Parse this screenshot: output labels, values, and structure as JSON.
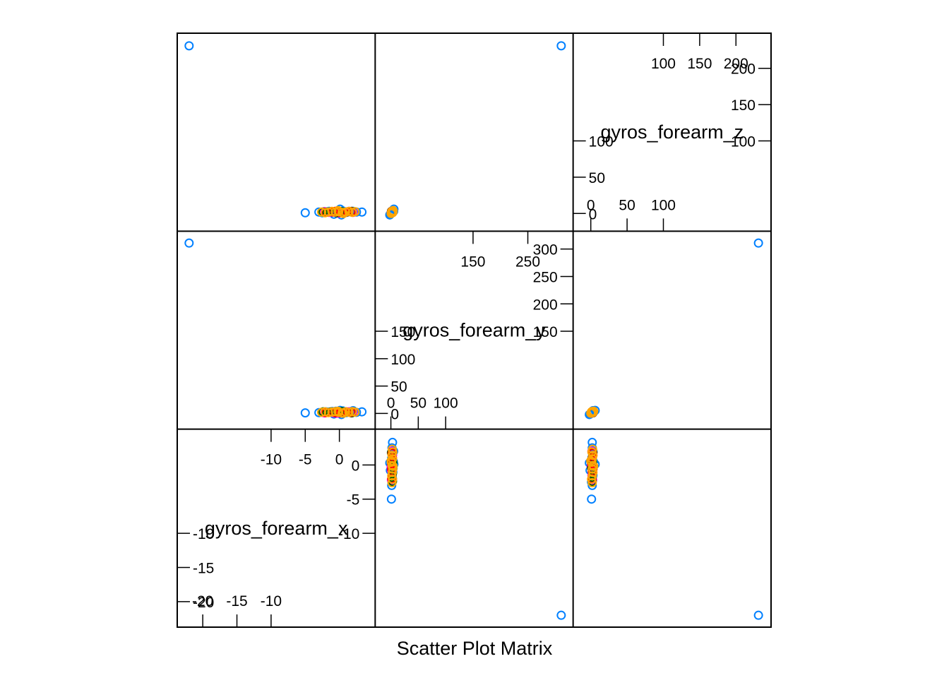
{
  "chart_data": {
    "type": "scatter",
    "subtype": "scatter-plot-matrix",
    "xlabel": "Scatter Plot Matrix",
    "variables": [
      "gyros_forearm_x",
      "gyros_forearm_y",
      "gyros_forearm_z"
    ],
    "variable_ranges": {
      "gyros_forearm_x": [
        -22.0,
        3.5
      ],
      "gyros_forearm_y": [
        -7.0,
        311.0
      ],
      "gyros_forearm_z": [
        -8.0,
        232.0
      ]
    },
    "diagonal": {
      "gyros_forearm_x": {
        "label": "gyros_forearm_x",
        "upper_ticks": [
          "-10",
          "-5",
          "0"
        ],
        "upper_tick_values": [
          -10,
          -5,
          0
        ],
        "right_ticks": [
          "0",
          "-5",
          "-10"
        ],
        "right_tick_values": [
          0,
          -5,
          -10
        ],
        "lower_ticks": [
          "-20",
          "-15",
          "-10"
        ],
        "lower_tick_values": [
          -20,
          -15,
          -10
        ],
        "left_ticks": [
          "-10",
          "-15",
          "-20"
        ],
        "left_tick_values": [
          -10,
          -15,
          -20
        ]
      },
      "gyros_forearm_y": {
        "label": "gyros_forearm_y",
        "upper_ticks": [
          "150",
          "250"
        ],
        "upper_tick_values": [
          150,
          250
        ],
        "right_ticks": [
          "300",
          "250",
          "200",
          "150"
        ],
        "right_tick_values": [
          300,
          250,
          200,
          150
        ],
        "lower_ticks": [
          "0",
          "50",
          "100"
        ],
        "lower_tick_values": [
          0,
          50,
          100
        ],
        "left_ticks": [
          "150",
          "100",
          "50",
          "0"
        ],
        "left_tick_values": [
          150,
          100,
          50,
          0
        ]
      },
      "gyros_forearm_z": {
        "label": "gyros_forearm_z",
        "upper_ticks": [
          "100",
          "150",
          "200"
        ],
        "upper_tick_values": [
          100,
          150,
          200
        ],
        "right_ticks": [
          "200",
          "150",
          "100"
        ],
        "right_tick_values": [
          200,
          150,
          100
        ],
        "lower_ticks": [
          "0",
          "50",
          "100"
        ],
        "lower_tick_values": [
          0,
          50,
          100
        ],
        "left_ticks": [
          "100",
          "50",
          "0"
        ],
        "left_tick_values": [
          100,
          50,
          0
        ]
      }
    },
    "group_colors": [
      "#0080ff",
      "#ff00ff",
      "#006400",
      "#ff0000",
      "#ffa500"
    ],
    "outlier": {
      "gyros_forearm_x": -22.0,
      "gyros_forearm_y": 311.0,
      "gyros_forearm_z": 231.0
    },
    "points": [
      {
        "x": -22.0,
        "y": 311.0,
        "z": 231.0,
        "group": 0
      },
      {
        "x": -5.0,
        "y": 1.0,
        "z": 1.0,
        "group": 0
      },
      {
        "x": -3.0,
        "y": 1.5,
        "z": 2.0,
        "group": 0
      },
      {
        "x": -2.5,
        "y": 2.0,
        "z": 1.0,
        "group": 0
      },
      {
        "x": -2.0,
        "y": 3.0,
        "z": 2.0,
        "group": 0
      },
      {
        "x": -1.5,
        "y": 2.5,
        "z": 3.0,
        "group": 0
      },
      {
        "x": -1.0,
        "y": 3.5,
        "z": 2.5,
        "group": 0
      },
      {
        "x": -0.5,
        "y": 4.0,
        "z": 3.0,
        "group": 0
      },
      {
        "x": 0.0,
        "y": 2.0,
        "z": 2.0,
        "group": 0
      },
      {
        "x": 0.5,
        "y": 4.5,
        "z": 3.5,
        "group": 0
      },
      {
        "x": 1.0,
        "y": 1.5,
        "z": 1.5,
        "group": 0
      },
      {
        "x": 1.5,
        "y": 3.0,
        "z": 2.5,
        "group": 0
      },
      {
        "x": 2.0,
        "y": 5.0,
        "z": 3.0,
        "group": 0
      },
      {
        "x": 2.5,
        "y": 2.0,
        "z": 2.0,
        "group": 0
      },
      {
        "x": 3.3,
        "y": 3.0,
        "z": 2.0,
        "group": 0
      },
      {
        "x": 0.3,
        "y": -2.0,
        "z": -2.0,
        "group": 0
      },
      {
        "x": 0.1,
        "y": 5.5,
        "z": 6.0,
        "group": 0
      },
      {
        "x": -0.8,
        "y": -1.0,
        "z": -1.0,
        "group": 0
      },
      {
        "x": -2.2,
        "y": 1.0,
        "z": 2.5,
        "group": 1
      },
      {
        "x": -1.5,
        "y": 2.0,
        "z": 1.5,
        "group": 1
      },
      {
        "x": -0.8,
        "y": 1.0,
        "z": 2.0,
        "group": 1
      },
      {
        "x": 0.0,
        "y": 2.5,
        "z": 2.0,
        "group": 1
      },
      {
        "x": 0.7,
        "y": 1.5,
        "z": 1.0,
        "group": 1
      },
      {
        "x": 1.4,
        "y": 3.0,
        "z": 3.0,
        "group": 1
      },
      {
        "x": 2.0,
        "y": 2.0,
        "z": 1.5,
        "group": 1
      },
      {
        "x": -0.3,
        "y": 0.5,
        "z": 0.5,
        "group": 1
      },
      {
        "x": -1.8,
        "y": 2.0,
        "z": 2.0,
        "group": 2
      },
      {
        "x": -1.2,
        "y": 3.0,
        "z": 2.5,
        "group": 2
      },
      {
        "x": -0.4,
        "y": 2.0,
        "z": 1.0,
        "group": 2
      },
      {
        "x": 0.4,
        "y": 3.5,
        "z": 2.5,
        "group": 2
      },
      {
        "x": 1.1,
        "y": 2.5,
        "z": 2.0,
        "group": 2
      },
      {
        "x": 1.8,
        "y": 1.0,
        "z": 3.0,
        "group": 2
      },
      {
        "x": -2.4,
        "y": 3.0,
        "z": 2.0,
        "group": 2
      },
      {
        "x": -2.0,
        "y": 1.5,
        "z": 1.5,
        "group": 3
      },
      {
        "x": -1.0,
        "y": 2.5,
        "z": 2.0,
        "group": 3
      },
      {
        "x": 0.2,
        "y": 1.0,
        "z": 1.0,
        "group": 3
      },
      {
        "x": 1.0,
        "y": 3.0,
        "z": 2.0,
        "group": 3
      },
      {
        "x": 1.7,
        "y": 2.0,
        "z": 2.5,
        "group": 3
      },
      {
        "x": -0.6,
        "y": 1.5,
        "z": 3.0,
        "group": 3
      },
      {
        "x": -2.6,
        "y": 2.0,
        "z": 2.0,
        "group": 4
      },
      {
        "x": -2.1,
        "y": 3.0,
        "z": 1.0,
        "group": 4
      },
      {
        "x": -1.6,
        "y": 1.5,
        "z": 2.0,
        "group": 4
      },
      {
        "x": -1.1,
        "y": 2.5,
        "z": 3.0,
        "group": 4
      },
      {
        "x": -0.6,
        "y": 3.5,
        "z": 2.0,
        "group": 4
      },
      {
        "x": -0.1,
        "y": 2.0,
        "z": 2.5,
        "group": 4
      },
      {
        "x": 0.4,
        "y": 1.0,
        "z": 1.5,
        "group": 4
      },
      {
        "x": 0.9,
        "y": 3.0,
        "z": 2.0,
        "group": 4
      },
      {
        "x": 1.4,
        "y": 2.0,
        "z": 3.0,
        "group": 4
      },
      {
        "x": 1.9,
        "y": 3.5,
        "z": 1.5,
        "group": 4
      },
      {
        "x": 2.3,
        "y": 2.5,
        "z": 2.5,
        "group": 4
      },
      {
        "x": -0.2,
        "y": 4.0,
        "z": 4.0,
        "group": 4
      },
      {
        "x": 0.6,
        "y": 0.5,
        "z": 0.0,
        "group": 4
      }
    ]
  }
}
